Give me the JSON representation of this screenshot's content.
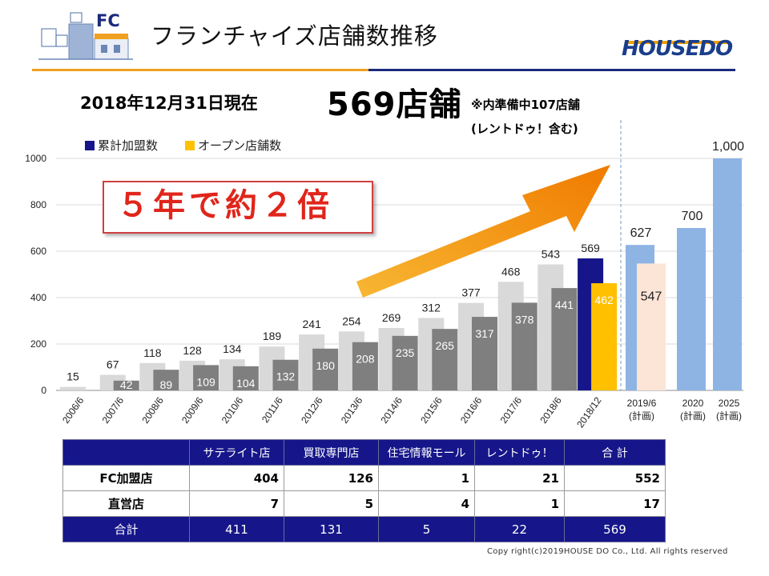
{
  "header": {
    "logo_badge": "FC",
    "title": "フランチャイズ店舗数推移",
    "brand": "HOUSEDO"
  },
  "headline": {
    "date_label": "2018年12月31日現在",
    "store_total": "569店舗",
    "note_line1": "※内準備中107店舗",
    "note_line2": "(レントドゥ！含む)"
  },
  "callout": "５年で約２倍",
  "colors": {
    "navy": "#16168a",
    "gold": "#ffc000",
    "light_gray": "#d9d9d9",
    "dark_gray": "#7f7f7f",
    "plan_blue": "#8eb4e3",
    "plan_peach": "#fce4d6",
    "callout_red": "#e0251b",
    "orange_rule": "#f0a020"
  },
  "chart_data": {
    "type": "bar",
    "legend": [
      "累計加盟数",
      "オープン店舗数"
    ],
    "ylim": [
      0,
      1000
    ],
    "yticks": [
      "0",
      "200",
      "400",
      "600",
      "800",
      "1000"
    ],
    "categories": [
      "2006/6",
      "2007/6",
      "2008/6",
      "2009/6",
      "2010/6",
      "2011/6",
      "2012/6",
      "2013/6",
      "2014/6",
      "2015/6",
      "2016/6",
      "2017/6",
      "2018/6",
      "2018/12"
    ],
    "series": [
      {
        "name": "累計加盟数",
        "values": [
          15,
          67,
          118,
          128,
          134,
          189,
          241,
          254,
          269,
          312,
          377,
          468,
          543,
          569
        ]
      },
      {
        "name": "オープン店舗数",
        "values": [
          null,
          42,
          89,
          109,
          104,
          132,
          180,
          208,
          235,
          265,
          317,
          378,
          441,
          462
        ]
      }
    ],
    "plan": {
      "categories": [
        [
          "2019/6",
          "(計画)"
        ],
        [
          "2020",
          "(計画)"
        ],
        [
          "2025",
          "(計画)"
        ]
      ],
      "members_values": [
        627,
        700,
        1000
      ],
      "member_labels": [
        "627",
        "700",
        "1,000"
      ],
      "open_values": [
        547,
        null,
        null
      ]
    }
  },
  "table": {
    "headers": [
      "",
      "サテライト店",
      "買取専門店",
      "住宅情報モール",
      "レントドゥ！",
      "合 計"
    ],
    "rows": [
      [
        "FC加盟店",
        "404",
        "126",
        "1",
        "21",
        "552"
      ],
      [
        "直営店",
        "7",
        "5",
        "4",
        "1",
        "17"
      ],
      [
        "合計",
        "411",
        "131",
        "5",
        "22",
        "569"
      ]
    ]
  },
  "copyright": "Copy right(c)2019HOUSE DO Co., Ltd. All rights reserved"
}
